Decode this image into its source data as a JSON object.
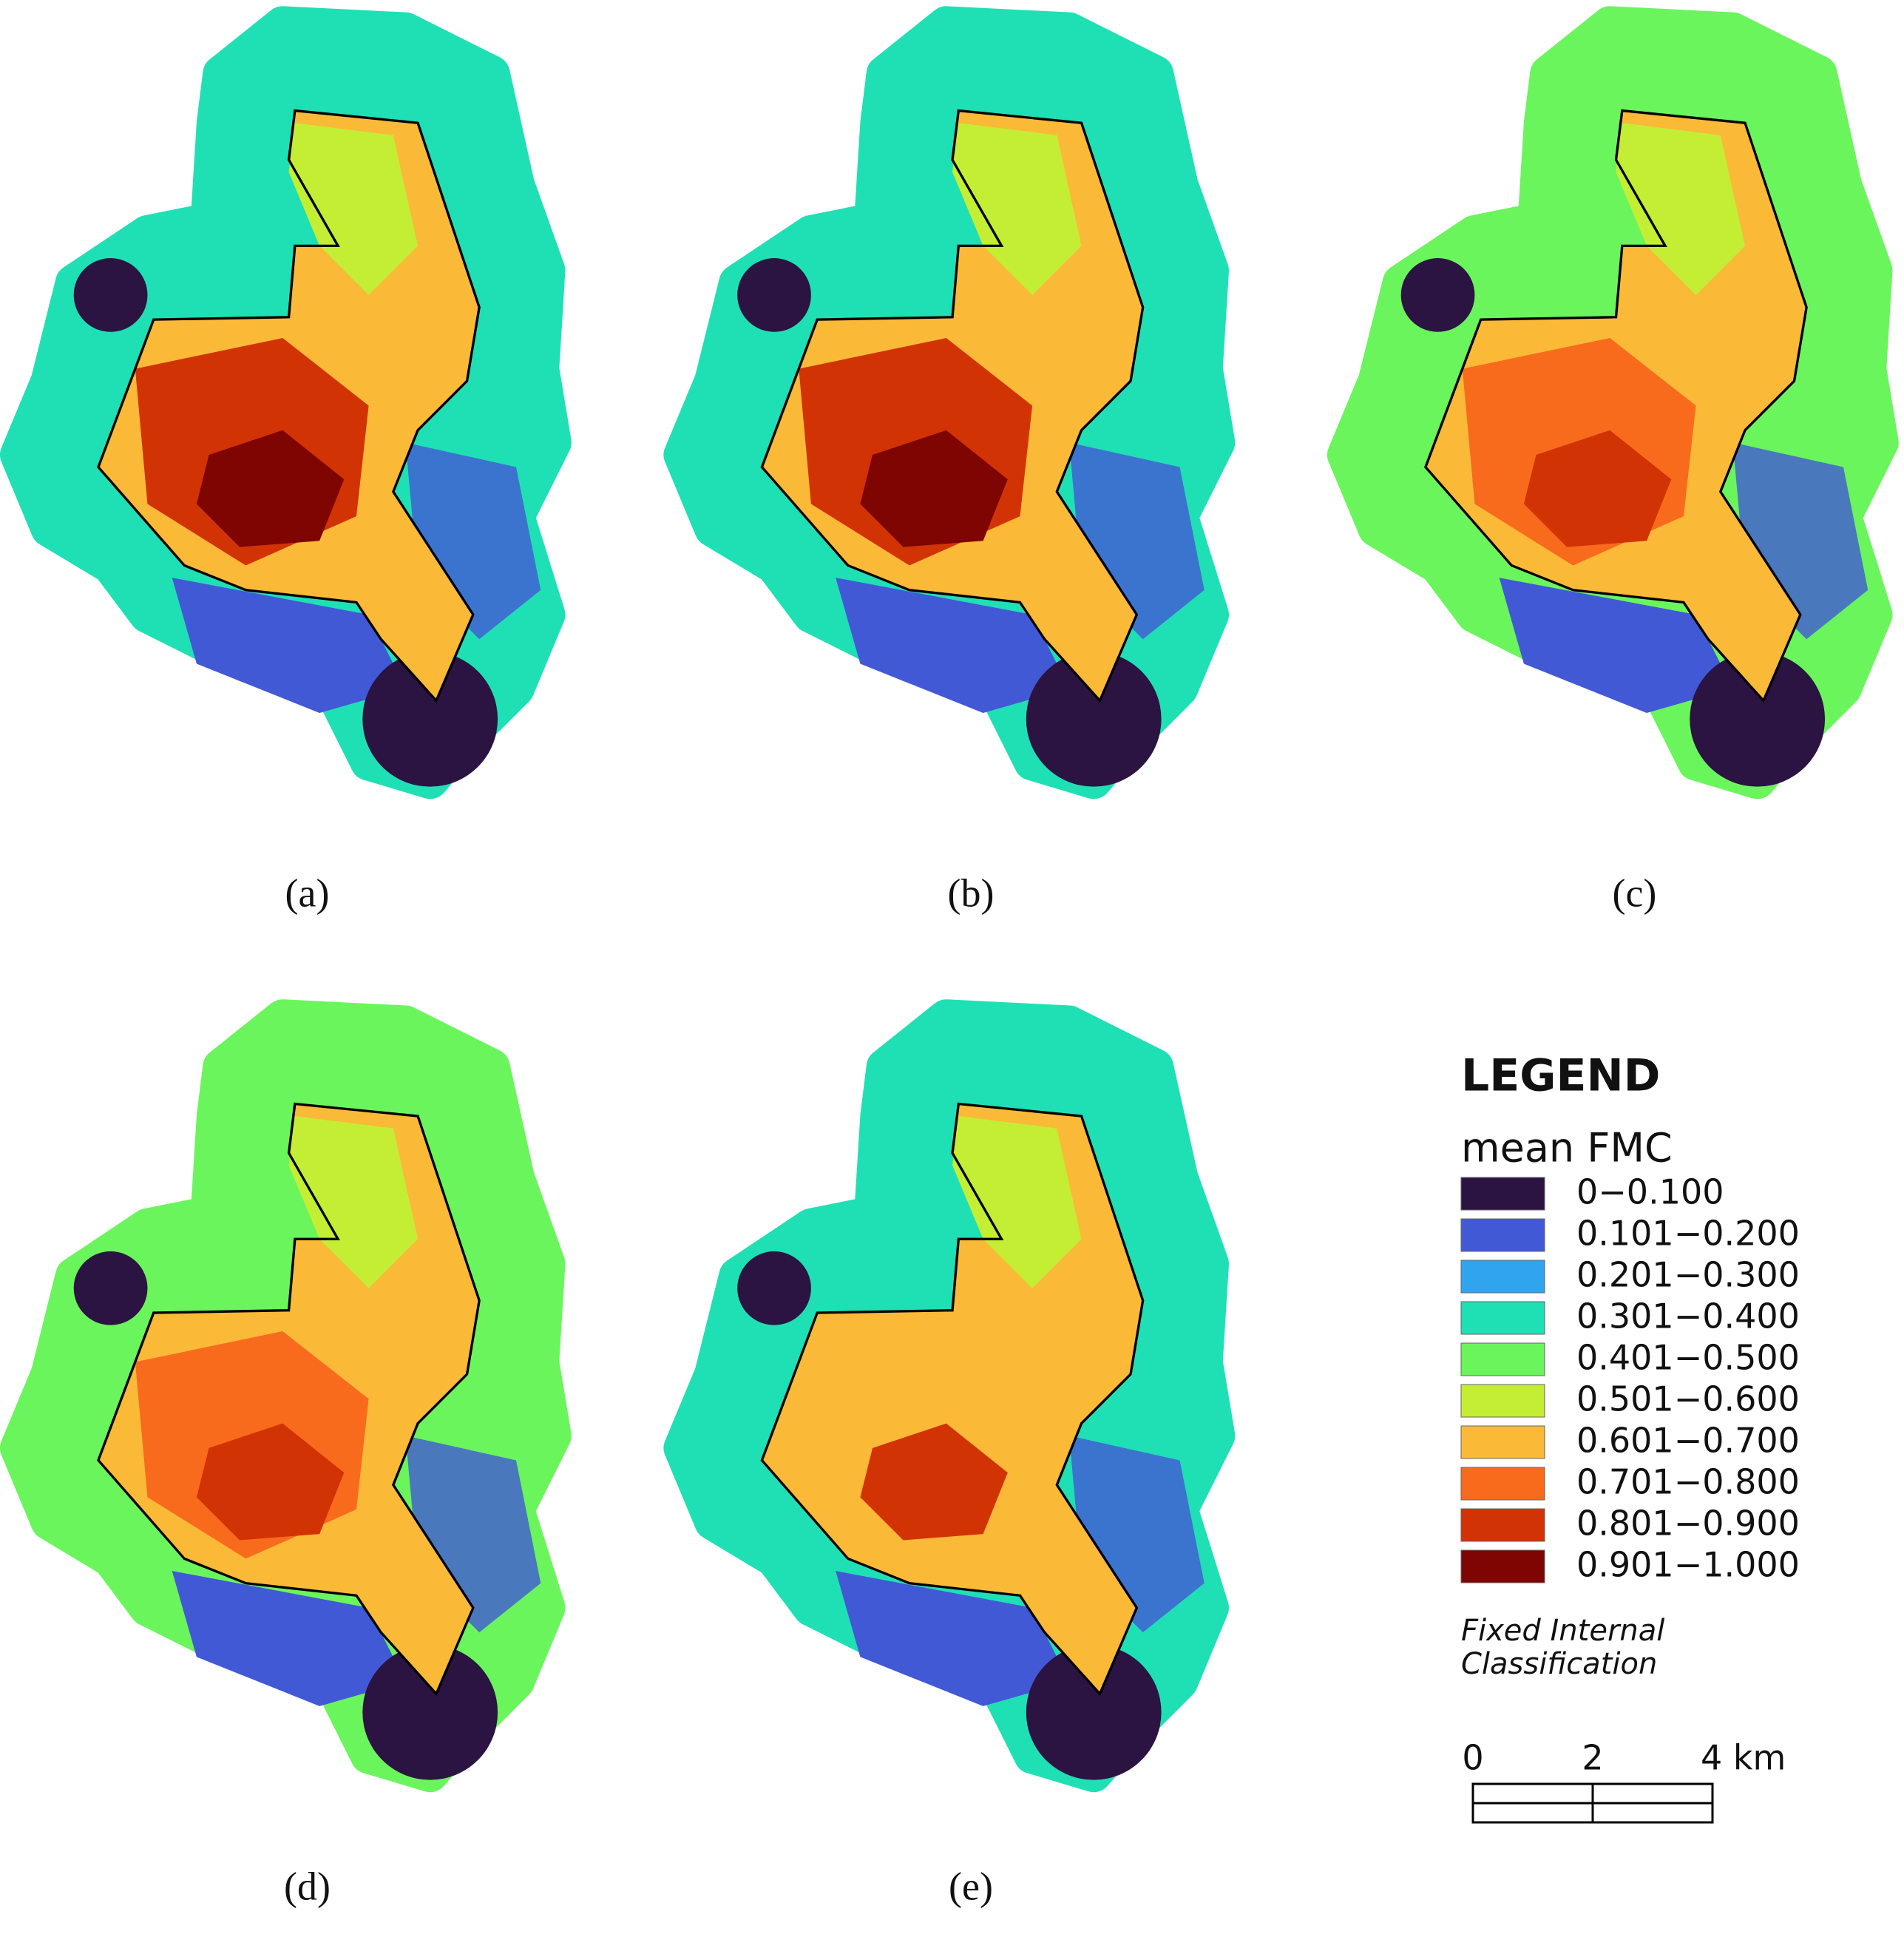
{
  "panels": [
    {
      "label": "(a)"
    },
    {
      "label": "(b)"
    },
    {
      "label": "(c)"
    },
    {
      "label": "(d)"
    },
    {
      "label": "(e)"
    }
  ],
  "legend": {
    "title": "LEGEND",
    "subtitle": "mean FMC",
    "classes": [
      {
        "label": "0−0.100",
        "color": "#2b1342"
      },
      {
        "label": "0.101−0.200",
        "color": "#4259d6"
      },
      {
        "label": "0.201−0.300",
        "color": "#31a4f0"
      },
      {
        "label": "0.301−0.400",
        "color": "#1fe0b4"
      },
      {
        "label": "0.401−0.500",
        "color": "#6af55c"
      },
      {
        "label": "0.501−0.600",
        "color": "#c4ee34"
      },
      {
        "label": "0.601−0.700",
        "color": "#fbb938"
      },
      {
        "label": "0.701−0.800",
        "color": "#f86b1c"
      },
      {
        "label": "0.801−0.900",
        "color": "#d23305"
      },
      {
        "label": "0.901−1.000",
        "color": "#7e0502"
      }
    ],
    "note": [
      "Fixed Internal",
      "Classification"
    ]
  },
  "scale_bar": {
    "range": [
      0,
      4
    ],
    "ticks": [
      0,
      2,
      {
        "value": 4,
        "label": "4 km"
      }
    ]
  }
}
